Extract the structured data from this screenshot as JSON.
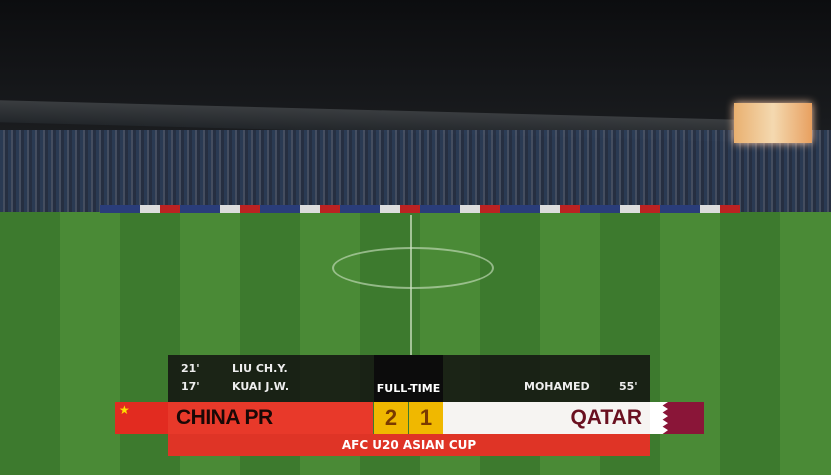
{
  "scoreboard": {
    "status": "FULL-TIME",
    "competition": "AFC U20 ASIAN CUP",
    "home": {
      "name": "CHINA PR",
      "score": "2",
      "color": "#e8392a",
      "scorers": [
        {
          "minute": "21'",
          "name": "LIU CH.Y."
        },
        {
          "minute": "17'",
          "name": "KUAI J.W."
        }
      ]
    },
    "away": {
      "name": "QATAR",
      "score": "1",
      "color": "#8a1538",
      "scorers": [
        {
          "minute": "55'",
          "name": "MOHAMED"
        }
      ]
    },
    "score_color": "#f0b800"
  }
}
